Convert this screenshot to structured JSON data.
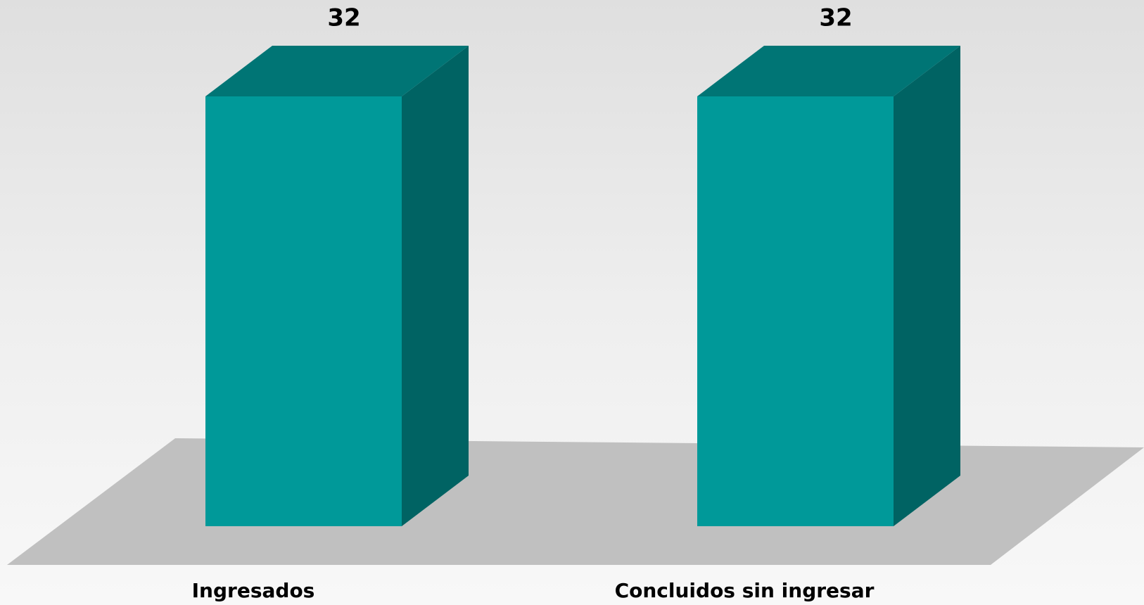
{
  "chart_data": {
    "type": "bar3d",
    "categories": [
      "Ingresados",
      "Concluidos sin ingresar"
    ],
    "values": [
      32,
      32
    ],
    "color": "#009999",
    "top_color": "#007575",
    "side_color": "#006363",
    "floor_color": "#c0c0c0"
  }
}
